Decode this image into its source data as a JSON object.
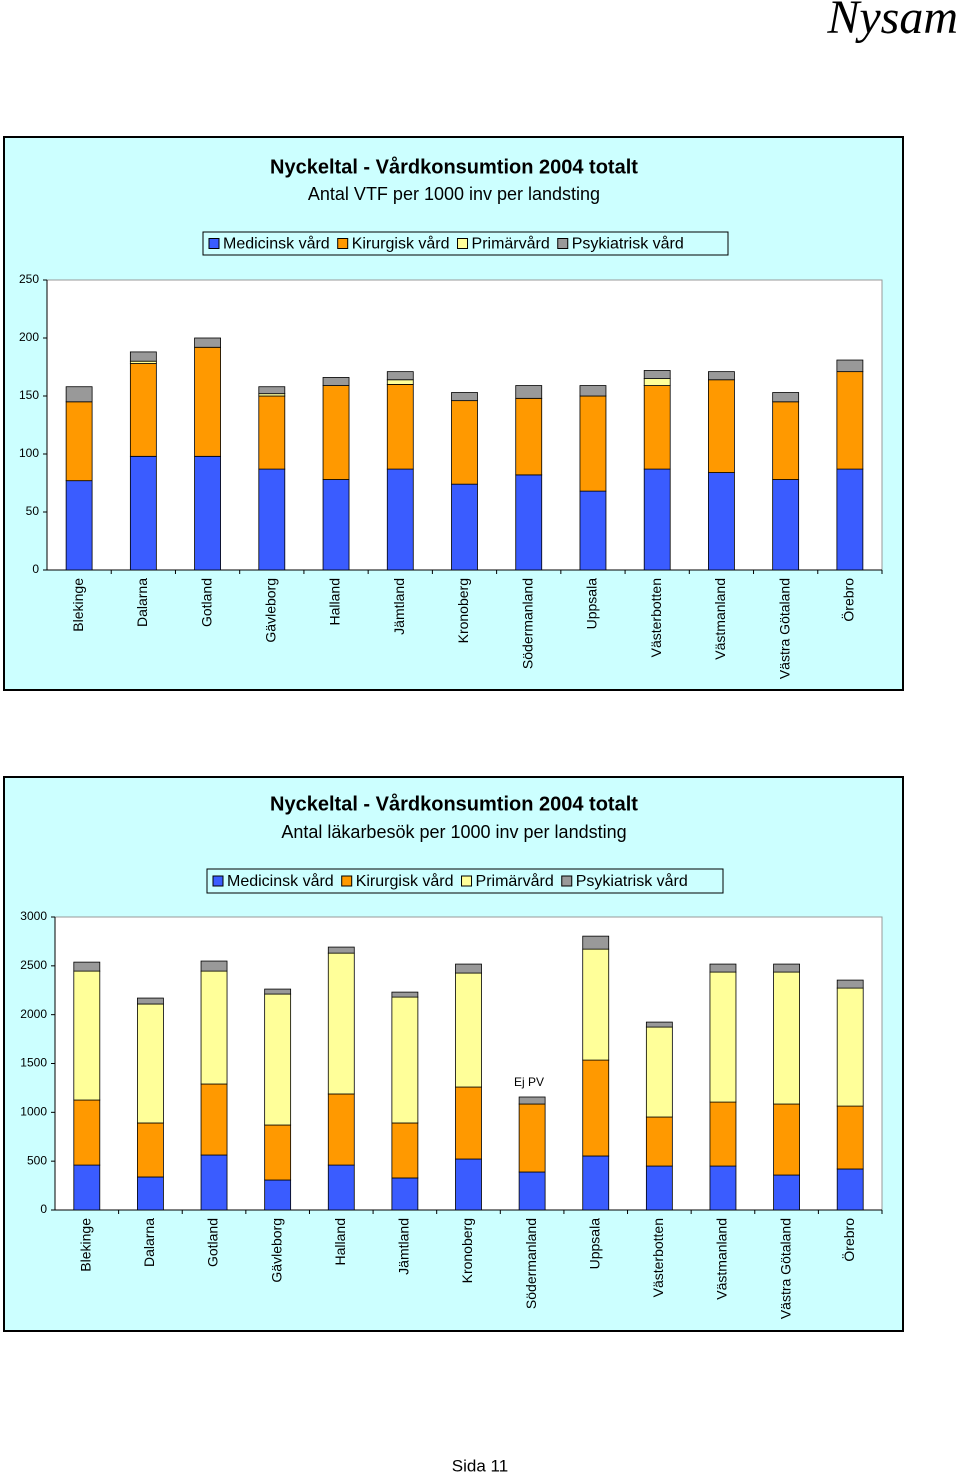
{
  "header": {
    "title": "Nysam"
  },
  "chart_data": [
    {
      "type": "stacked-bar",
      "title": "Nyckeltal - Vårdkonsumtion 2004 totalt",
      "subtitle": "Antal VTF per 1000 inv per landsting",
      "categories": [
        "Blekinge",
        "Dalarna",
        "Gotland",
        "Gävleborg",
        "Halland",
        "Jämtland",
        "Kronoberg",
        "Södermanland",
        "Uppsala",
        "Västerbotten",
        "Västmanland",
        "Västra Götaland",
        "Örebro"
      ],
      "series": [
        {
          "name": "Medicinsk vård",
          "color": "#3a5cff",
          "values": [
            77,
            98,
            98,
            87,
            78,
            87,
            74,
            82,
            68,
            87,
            84,
            78,
            87
          ]
        },
        {
          "name": "Kirurgisk vård",
          "color": "#ff9900",
          "values": [
            68,
            80,
            94,
            63,
            81,
            73,
            72,
            66,
            82,
            72,
            80,
            67,
            84
          ]
        },
        {
          "name": "Primärvård",
          "color": "#ffff99",
          "values": [
            0,
            2,
            0,
            2,
            0,
            4,
            0,
            0,
            0,
            6,
            0,
            0,
            0
          ]
        },
        {
          "name": "Psykiatrisk vård",
          "color": "#999999",
          "values": [
            13,
            8,
            8,
            6,
            7,
            7,
            7,
            11,
            9,
            7,
            7,
            8,
            10
          ]
        }
      ],
      "ylim": [
        0,
        250
      ],
      "yticks": [
        0,
        50,
        100,
        150,
        200,
        250
      ]
    },
    {
      "type": "stacked-bar",
      "title": "Nyckeltal - Vårdkonsumtion 2004 totalt",
      "subtitle": "Antal läkarbesök per 1000 inv per landsting",
      "categories": [
        "Blekinge",
        "Dalarna",
        "Gotland",
        "Gävleborg",
        "Halland",
        "Jämtland",
        "Kronoberg",
        "Södermanland",
        "Uppsala",
        "Västerbotten",
        "Västmanland",
        "Västra Götaland",
        "Örebro"
      ],
      "series": [
        {
          "name": "Medicinsk vård",
          "color": "#3a5cff",
          "values": [
            460,
            338,
            563,
            307,
            460,
            328,
            522,
            389,
            553,
            450,
            450,
            358,
            420
          ]
        },
        {
          "name": "Kirurgisk vård",
          "color": "#ff9900",
          "values": [
            666,
            553,
            727,
            563,
            728,
            563,
            737,
            696,
            982,
            502,
            655,
            727,
            644
          ]
        },
        {
          "name": "Primärvård",
          "color": "#ffff99",
          "values": [
            1320,
            1218,
            1156,
            1341,
            1442,
            1289,
            1167,
            0,
            1136,
            921,
            1331,
            1351,
            1208
          ]
        },
        {
          "name": "Psykiatrisk vård",
          "color": "#999999",
          "values": [
            92,
            61,
            103,
            51,
            62,
            51,
            92,
            72,
            133,
            51,
            82,
            82,
            82
          ]
        }
      ],
      "ylim": [
        0,
        3000
      ],
      "yticks": [
        0,
        500,
        1000,
        1500,
        2000,
        2500,
        3000
      ],
      "annotations": [
        "Ej PV"
      ]
    }
  ],
  "footer": {
    "text": "Sida 11"
  }
}
